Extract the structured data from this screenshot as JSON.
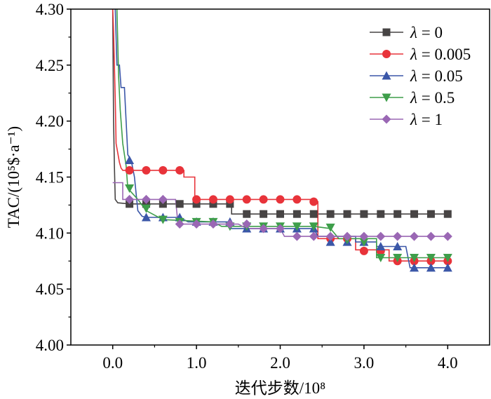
{
  "chart_data": {
    "type": "line",
    "title": "",
    "xlabel": "迭代步数/10⁸",
    "ylabel": "TAC/(10⁵$·a⁻¹)",
    "xlim": [
      -0.5,
      4.5
    ],
    "ylim": [
      4.0,
      4.3
    ],
    "xticks": [
      "0.0",
      "1.0",
      "2.0",
      "3.0",
      "4.0"
    ],
    "yticks": [
      "4.00",
      "4.05",
      "4.10",
      "4.15",
      "4.20",
      "4.25",
      "4.30"
    ],
    "legend_position": "top-right",
    "grid": false,
    "series": [
      {
        "name": "λ = 0",
        "color": "#474444",
        "marker": "square",
        "line": [
          [
            0.0,
            4.3
          ],
          [
            0.01,
            4.2
          ],
          [
            0.02,
            4.16
          ],
          [
            0.03,
            4.13
          ],
          [
            0.06,
            4.127
          ],
          [
            0.2,
            4.126
          ],
          [
            1.1,
            4.126
          ],
          [
            1.42,
            4.126
          ],
          [
            1.42,
            4.117
          ],
          [
            4.0,
            4.117
          ]
        ],
        "markers": [
          [
            0.2,
            4.126
          ],
          [
            0.4,
            4.126
          ],
          [
            0.6,
            4.126
          ],
          [
            0.8,
            4.126
          ],
          [
            1.0,
            4.126
          ],
          [
            1.2,
            4.126
          ],
          [
            1.4,
            4.126
          ],
          [
            1.6,
            4.117
          ],
          [
            1.8,
            4.117
          ],
          [
            2.0,
            4.117
          ],
          [
            2.2,
            4.117
          ],
          [
            2.4,
            4.117
          ],
          [
            2.6,
            4.117
          ],
          [
            2.8,
            4.117
          ],
          [
            3.0,
            4.117
          ],
          [
            3.2,
            4.117
          ],
          [
            3.4,
            4.117
          ],
          [
            3.6,
            4.117
          ],
          [
            3.8,
            4.117
          ],
          [
            4.0,
            4.117
          ]
        ]
      },
      {
        "name": "λ = 0.005",
        "color": "#e8333a",
        "marker": "circle",
        "line": [
          [
            0.0,
            4.3
          ],
          [
            0.01,
            4.28
          ],
          [
            0.03,
            4.22
          ],
          [
            0.04,
            4.18
          ],
          [
            0.08,
            4.163
          ],
          [
            0.1,
            4.158
          ],
          [
            0.12,
            4.156
          ],
          [
            0.85,
            4.156
          ],
          [
            0.85,
            4.15
          ],
          [
            0.98,
            4.15
          ],
          [
            0.98,
            4.13
          ],
          [
            2.42,
            4.13
          ],
          [
            2.42,
            4.128
          ],
          [
            2.45,
            4.128
          ],
          [
            2.45,
            4.095
          ],
          [
            2.9,
            4.095
          ],
          [
            2.9,
            4.085
          ],
          [
            3.3,
            4.085
          ],
          [
            3.3,
            4.075
          ],
          [
            4.0,
            4.075
          ]
        ],
        "markers": [
          [
            0.2,
            4.156
          ],
          [
            0.4,
            4.156
          ],
          [
            0.6,
            4.156
          ],
          [
            0.8,
            4.156
          ],
          [
            1.0,
            4.13
          ],
          [
            1.2,
            4.13
          ],
          [
            1.4,
            4.13
          ],
          [
            1.6,
            4.13
          ],
          [
            1.8,
            4.13
          ],
          [
            2.0,
            4.13
          ],
          [
            2.2,
            4.13
          ],
          [
            2.4,
            4.128
          ],
          [
            2.6,
            4.095
          ],
          [
            2.8,
            4.095
          ],
          [
            3.0,
            4.084
          ],
          [
            3.2,
            4.084
          ],
          [
            3.4,
            4.075
          ],
          [
            3.6,
            4.075
          ],
          [
            3.8,
            4.075
          ],
          [
            4.0,
            4.075
          ]
        ]
      },
      {
        "name": "λ = 0.05",
        "color": "#3b57a8",
        "marker": "triangle-up",
        "line": [
          [
            0.03,
            4.3
          ],
          [
            0.05,
            4.25
          ],
          [
            0.08,
            4.25
          ],
          [
            0.1,
            4.23
          ],
          [
            0.14,
            4.23
          ],
          [
            0.16,
            4.2
          ],
          [
            0.18,
            4.17
          ],
          [
            0.22,
            4.165
          ],
          [
            0.26,
            4.15
          ],
          [
            0.3,
            4.12
          ],
          [
            0.35,
            4.115
          ],
          [
            0.4,
            4.114
          ],
          [
            0.8,
            4.114
          ],
          [
            0.9,
            4.11
          ],
          [
            1.4,
            4.11
          ],
          [
            1.4,
            4.104
          ],
          [
            2.4,
            4.104
          ],
          [
            2.45,
            4.097
          ],
          [
            2.9,
            4.097
          ],
          [
            2.9,
            4.092
          ],
          [
            3.15,
            4.092
          ],
          [
            3.15,
            4.088
          ],
          [
            3.5,
            4.088
          ],
          [
            3.55,
            4.069
          ],
          [
            4.0,
            4.069
          ]
        ],
        "markers": [
          [
            0.2,
            4.165
          ],
          [
            0.4,
            4.114
          ],
          [
            0.6,
            4.114
          ],
          [
            0.8,
            4.114
          ],
          [
            1.0,
            4.11
          ],
          [
            1.2,
            4.11
          ],
          [
            1.4,
            4.11
          ],
          [
            1.6,
            4.104
          ],
          [
            1.8,
            4.104
          ],
          [
            2.0,
            4.104
          ],
          [
            2.2,
            4.104
          ],
          [
            2.4,
            4.104
          ],
          [
            2.6,
            4.092
          ],
          [
            2.8,
            4.092
          ],
          [
            3.0,
            4.092
          ],
          [
            3.2,
            4.088
          ],
          [
            3.4,
            4.088
          ],
          [
            3.6,
            4.069
          ],
          [
            3.8,
            4.069
          ],
          [
            4.0,
            4.069
          ]
        ]
      },
      {
        "name": "λ = 0.5",
        "color": "#3e9e4a",
        "marker": "triangle-down",
        "line": [
          [
            0.05,
            4.3
          ],
          [
            0.07,
            4.24
          ],
          [
            0.09,
            4.21
          ],
          [
            0.12,
            4.18
          ],
          [
            0.16,
            4.16
          ],
          [
            0.18,
            4.14
          ],
          [
            0.3,
            4.13
          ],
          [
            0.4,
            4.12
          ],
          [
            0.6,
            4.112
          ],
          [
            1.2,
            4.11
          ],
          [
            1.3,
            4.106
          ],
          [
            2.4,
            4.106
          ],
          [
            2.6,
            4.104
          ],
          [
            2.7,
            4.095
          ],
          [
            3.15,
            4.095
          ],
          [
            3.15,
            4.078
          ],
          [
            4.0,
            4.078
          ]
        ],
        "markers": [
          [
            0.2,
            4.14
          ],
          [
            0.4,
            4.122
          ],
          [
            0.6,
            4.112
          ],
          [
            0.8,
            4.11
          ],
          [
            1.0,
            4.11
          ],
          [
            1.2,
            4.11
          ],
          [
            1.4,
            4.106
          ],
          [
            1.6,
            4.106
          ],
          [
            1.8,
            4.106
          ],
          [
            2.0,
            4.106
          ],
          [
            2.2,
            4.106
          ],
          [
            2.4,
            4.106
          ],
          [
            2.6,
            4.105
          ],
          [
            2.8,
            4.094
          ],
          [
            3.0,
            4.092
          ],
          [
            3.2,
            4.078
          ],
          [
            3.4,
            4.078
          ],
          [
            3.6,
            4.078
          ],
          [
            3.8,
            4.078
          ],
          [
            4.0,
            4.078
          ]
        ]
      },
      {
        "name": "λ = 1",
        "color": "#9a67b4",
        "marker": "diamond",
        "line": [
          [
            0.0,
            4.145
          ],
          [
            0.12,
            4.145
          ],
          [
            0.12,
            4.13
          ],
          [
            0.75,
            4.13
          ],
          [
            0.78,
            4.108
          ],
          [
            1.3,
            4.108
          ],
          [
            1.5,
            4.108
          ],
          [
            1.6,
            4.104
          ],
          [
            2.0,
            4.104
          ],
          [
            2.05,
            4.097
          ],
          [
            4.0,
            4.097
          ]
        ],
        "markers": [
          [
            0.2,
            4.13
          ],
          [
            0.4,
            4.13
          ],
          [
            0.6,
            4.13
          ],
          [
            0.8,
            4.108
          ],
          [
            1.0,
            4.108
          ],
          [
            1.2,
            4.108
          ],
          [
            1.4,
            4.108
          ],
          [
            1.6,
            4.108
          ],
          [
            1.8,
            4.104
          ],
          [
            2.0,
            4.104
          ],
          [
            2.2,
            4.097
          ],
          [
            2.4,
            4.097
          ],
          [
            2.6,
            4.097
          ],
          [
            2.8,
            4.097
          ],
          [
            3.0,
            4.097
          ],
          [
            3.2,
            4.097
          ],
          [
            3.4,
            4.097
          ],
          [
            3.6,
            4.097
          ],
          [
            3.8,
            4.097
          ],
          [
            4.0,
            4.097
          ]
        ]
      }
    ]
  }
}
